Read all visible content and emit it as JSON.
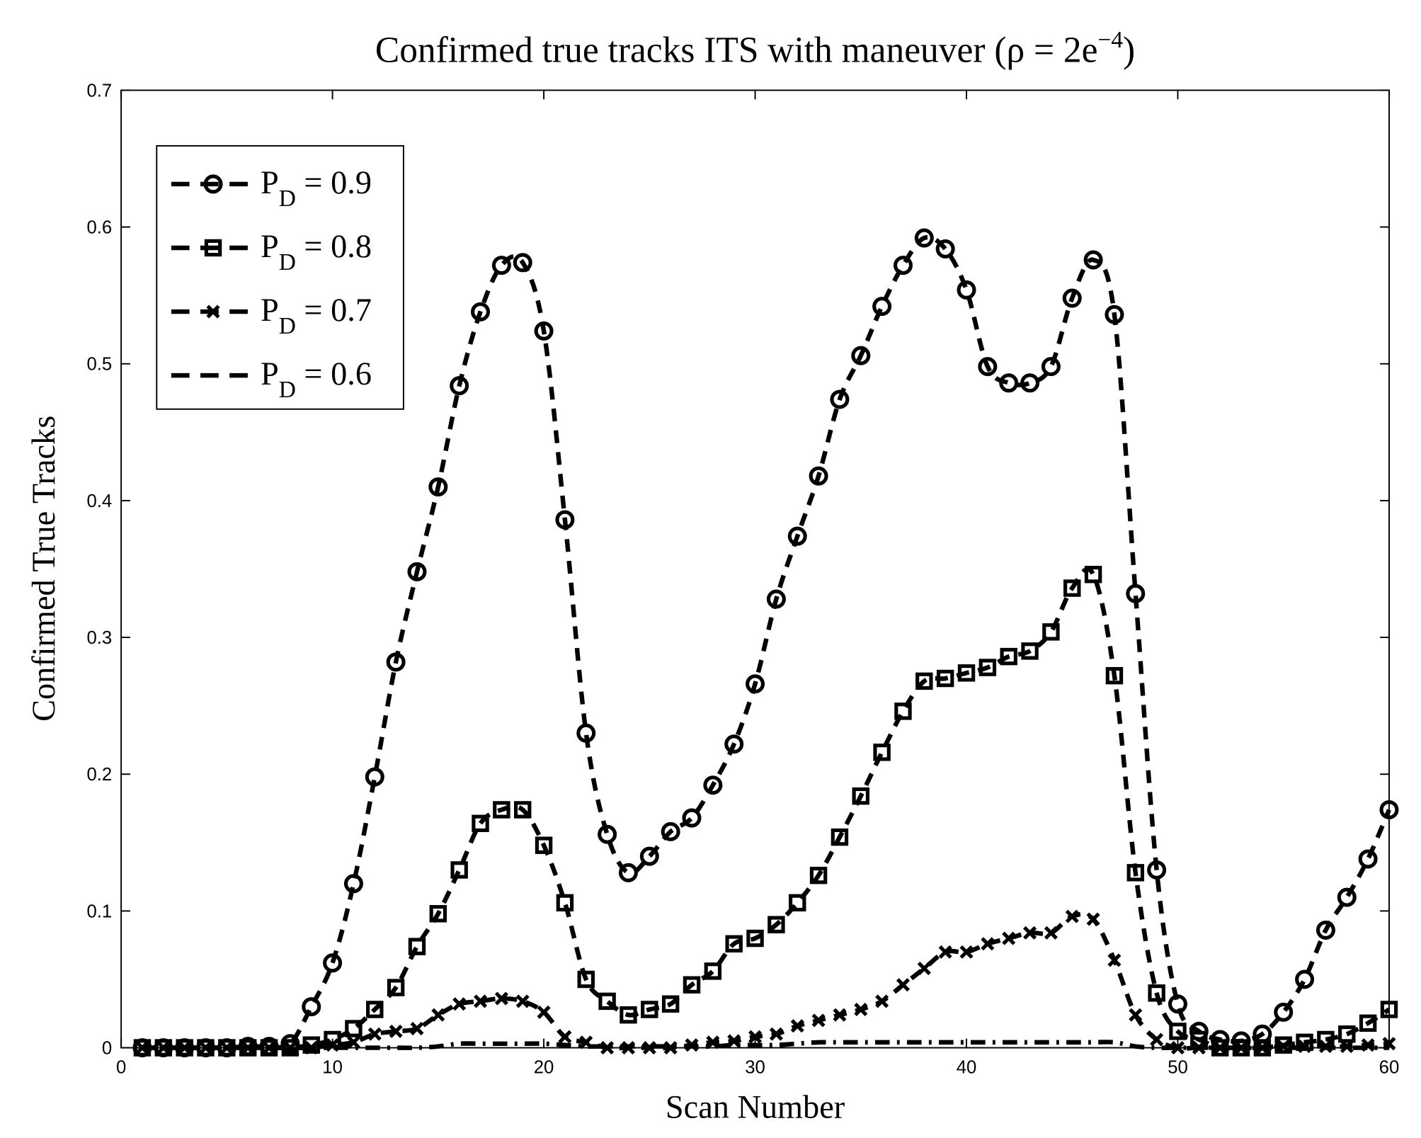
{
  "chart_data": {
    "type": "line",
    "title": "Confirmed true tracks ITS with maneuver (ρ = 2e",
    "title_superscript": "−4",
    "title_suffix": ")",
    "xlabel": "Scan Number",
    "ylabel": "Confirmed True Tracks",
    "xlim": [
      0,
      60
    ],
    "ylim": [
      0,
      0.7
    ],
    "xticks": [
      "0",
      "10",
      "20",
      "30",
      "40",
      "50",
      "60"
    ],
    "yticks": [
      "0",
      "0.1",
      "0.2",
      "0.3",
      "0.4",
      "0.5",
      "0.6",
      "0.7"
    ],
    "grid": false,
    "legend_position": "top-left",
    "x": [
      1,
      2,
      3,
      4,
      5,
      6,
      7,
      8,
      9,
      10,
      11,
      12,
      13,
      14,
      15,
      16,
      17,
      18,
      19,
      20,
      21,
      22,
      23,
      24,
      25,
      26,
      27,
      28,
      29,
      30,
      31,
      32,
      33,
      34,
      35,
      36,
      37,
      38,
      39,
      40,
      41,
      42,
      43,
      44,
      45,
      46,
      47,
      48,
      49,
      50,
      51,
      52,
      53,
      54,
      55,
      56,
      57,
      58,
      59,
      60
    ],
    "series": [
      {
        "name": "P_D = 0.9",
        "label_main": "P",
        "label_sub": "D",
        "label_rest": " = 0.9",
        "marker": "circle",
        "line": "dashed",
        "values": [
          0,
          0,
          0,
          0,
          0,
          0.001,
          0.001,
          0.003,
          0.03,
          0.062,
          0.12,
          0.198,
          0.282,
          0.348,
          0.41,
          0.484,
          0.538,
          0.572,
          0.574,
          0.524,
          0.386,
          0.23,
          0.156,
          0.128,
          0.14,
          0.158,
          0.168,
          0.192,
          0.222,
          0.266,
          0.328,
          0.374,
          0.418,
          0.474,
          0.506,
          0.542,
          0.572,
          0.592,
          0.584,
          0.554,
          0.498,
          0.486,
          0.486,
          0.498,
          0.548,
          0.576,
          0.536,
          0.332,
          0.13,
          0.032,
          0.012,
          0.006,
          0.005,
          0.01,
          0.026,
          0.05,
          0.086,
          0.11,
          0.138,
          0.174
        ]
      },
      {
        "name": "P_D = 0.8",
        "label_main": "P",
        "label_sub": "D",
        "label_rest": " = 0.8",
        "marker": "square",
        "line": "dashed",
        "values": [
          0,
          0,
          0,
          0,
          0,
          0,
          0,
          0,
          0.002,
          0.006,
          0.014,
          0.028,
          0.044,
          0.074,
          0.098,
          0.13,
          0.164,
          0.174,
          0.174,
          0.148,
          0.106,
          0.05,
          0.034,
          0.024,
          0.028,
          0.032,
          0.046,
          0.056,
          0.076,
          0.08,
          0.09,
          0.106,
          0.126,
          0.154,
          0.184,
          0.216,
          0.246,
          0.268,
          0.27,
          0.274,
          0.278,
          0.286,
          0.29,
          0.304,
          0.336,
          0.346,
          0.272,
          0.128,
          0.04,
          0.012,
          0.006,
          0,
          0,
          0,
          0.002,
          0.004,
          0.006,
          0.01,
          0.018,
          0.028
        ]
      },
      {
        "name": "P_D = 0.7",
        "label_main": "P",
        "label_sub": "D",
        "label_rest": " = 0.7",
        "marker": "x",
        "line": "dashed",
        "values": [
          0,
          0,
          0,
          0,
          0,
          0,
          0,
          0,
          0,
          0.002,
          0.004,
          0.01,
          0.012,
          0.014,
          0.024,
          0.032,
          0.034,
          0.036,
          0.034,
          0.026,
          0.008,
          0.004,
          0,
          0,
          0,
          0,
          0.002,
          0.004,
          0.005,
          0.008,
          0.01,
          0.016,
          0.02,
          0.024,
          0.028,
          0.034,
          0.046,
          0.058,
          0.07,
          0.07,
          0.076,
          0.08,
          0.084,
          0.084,
          0.096,
          0.094,
          0.064,
          0.024,
          0.006,
          0,
          0,
          0,
          0,
          0,
          0.001,
          0.001,
          0.001,
          0.001,
          0.002,
          0.003
        ]
      },
      {
        "name": "P_D = 0.6",
        "label_main": "P",
        "label_sub": "D",
        "label_rest": " = 0.6",
        "marker": "none",
        "line": "dashdot",
        "values": [
          0,
          0,
          0,
          0,
          0,
          0,
          0,
          0,
          0,
          0,
          0,
          0,
          0,
          0,
          0.001,
          0.003,
          0.003,
          0.003,
          0.003,
          0.003,
          0.002,
          0.001,
          0.001,
          0.001,
          0.001,
          0.001,
          0.001,
          0.001,
          0.002,
          0.002,
          0.002,
          0.003,
          0.004,
          0.004,
          0.004,
          0.004,
          0.004,
          0.004,
          0.004,
          0.004,
          0.004,
          0.004,
          0.004,
          0.004,
          0.004,
          0.004,
          0.004,
          0.001,
          0,
          0,
          0,
          0,
          0,
          0,
          0,
          0,
          0,
          0,
          0,
          0
        ]
      }
    ]
  }
}
